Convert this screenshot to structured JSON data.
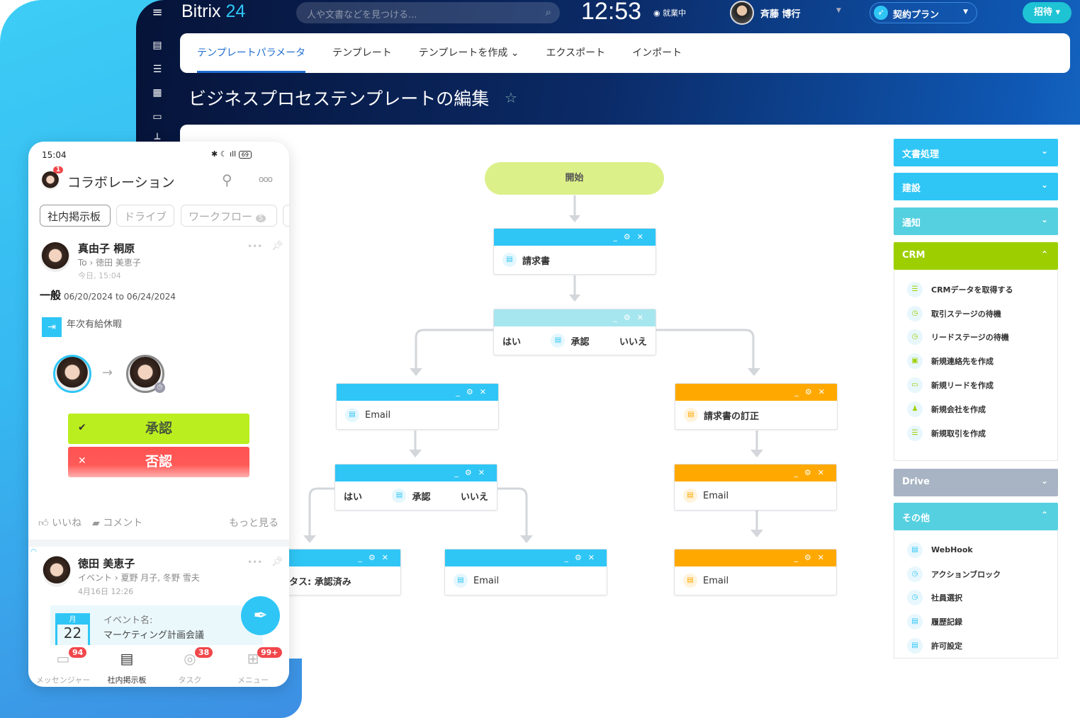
{
  "topbar": {
    "app_name": "Bitrix",
    "app_suffix": "24",
    "search_placeholder": "人や文書などを見つける...",
    "clock": "12:53",
    "work_status": "就業中",
    "user_name": "斉藤 博行",
    "plan": "契約プラン",
    "invite": "招待"
  },
  "tabs": [
    {
      "label": "テンプレートパラメータ",
      "active": true
    },
    {
      "label": "テンプレート"
    },
    {
      "label": "テンプレートを作成 ⌄"
    },
    {
      "label": "エクスポート"
    },
    {
      "label": "インポート"
    }
  ],
  "page_title": "ビジネスプロセステンプレートの編集",
  "flow": {
    "start": "開始",
    "yes": "はい",
    "no": "いいえ",
    "approve": "承認",
    "nodes": {
      "invoice": "請求書",
      "email": "Email",
      "invoice_fix": "請求書の訂正",
      "status": "ステータス: 承認済み"
    }
  },
  "groups": {
    "docs": "文書処理",
    "build": "建設",
    "notify": "通知",
    "crm": "CRM",
    "drive": "Drive",
    "other": "その他"
  },
  "crm_items": [
    "CRMデータを取得する",
    "取引ステージの待機",
    "リードステージの待機",
    "新規連絡先を作成",
    "新規リードを作成",
    "新規会社を作成",
    "新規取引を作成"
  ],
  "other_items": [
    "WebHook",
    "アクションブロック",
    "社員選択",
    "履歴記録",
    "許可設定"
  ],
  "colors": {
    "blue": "#2fc6f6",
    "orange": "#ffa900",
    "green": "#9dcf00",
    "drive": "#a8b4c4",
    "teal": "#55d0e0"
  },
  "mobile": {
    "time": "15:04",
    "battery": "69",
    "header": "コラボレーション",
    "avatar_badge": "1",
    "chips": [
      {
        "label": "社内掲示板"
      },
      {
        "label": "ドライブ"
      },
      {
        "label": "ワークフロー",
        "count": "5"
      }
    ],
    "post1": {
      "author": "真由子 桐原",
      "to": "To",
      "recipient": "徳田 美恵子",
      "time": "今日, 15:04",
      "category": "一般",
      "dates": "06/20/2024 to 06/24/2024",
      "leave": "年次有給休暇",
      "approve": "承認",
      "reject": "否認"
    },
    "actions": {
      "like": "いいね",
      "comment": "コメント",
      "more": "もっと見る"
    },
    "post2": {
      "author": "徳田 美恵子",
      "type": "イベント",
      "recipients": "夏野 月子, 冬野 雪夫",
      "time": "4月16日 12:26",
      "cal_month": "月",
      "cal_day": "22",
      "event_label": "イベント名:",
      "event_name": "マーケティング計画会議"
    },
    "nav": [
      {
        "label": "メッセンジャー",
        "badge": "94"
      },
      {
        "label": "社内掲示板"
      },
      {
        "label": "タスク",
        "badge": "38"
      },
      {
        "label": "メニュー",
        "badge": "99+"
      }
    ]
  }
}
